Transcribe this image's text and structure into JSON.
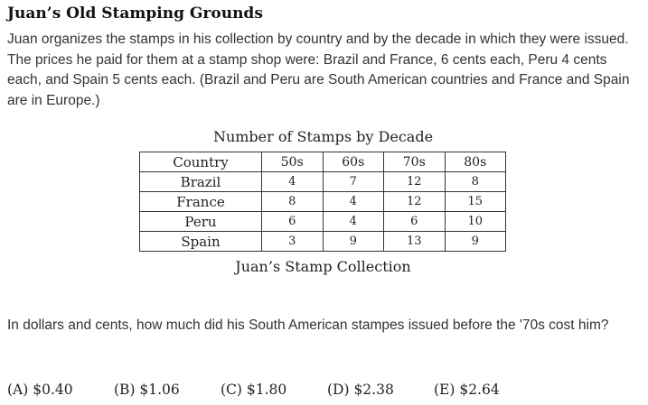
{
  "problem": {
    "title": "Juan’s Old Stamping Grounds",
    "intro": "Juan organizes the stamps in his collection by country and by the decade in which they were issued. The prices he paid for them at a stamp shop were: Brazil and France, 6 cents each, Peru 4 cents each, and Spain 5 cents each. (Brazil and Peru are South American countries and France and Spain are in Europe.)",
    "question": "In dollars and cents, how much did his South American stampes issued before the '70s cost him?"
  },
  "table": {
    "caption_top": "Number of Stamps by Decade",
    "caption_bottom": "Juan’s Stamp Collection",
    "headers": [
      "Country",
      "50s",
      "60s",
      "70s",
      "80s"
    ],
    "rows": [
      [
        "Brazil",
        "4",
        "7",
        "12",
        "8"
      ],
      [
        "France",
        "8",
        "4",
        "12",
        "15"
      ],
      [
        "Peru",
        "6",
        "4",
        "6",
        "10"
      ],
      [
        "Spain",
        "3",
        "9",
        "13",
        "9"
      ]
    ]
  },
  "choices": [
    "(A) $0.40",
    "(B) $1.06",
    "(C) $1.80",
    "(D) $2.38",
    "(E) $2.64"
  ]
}
